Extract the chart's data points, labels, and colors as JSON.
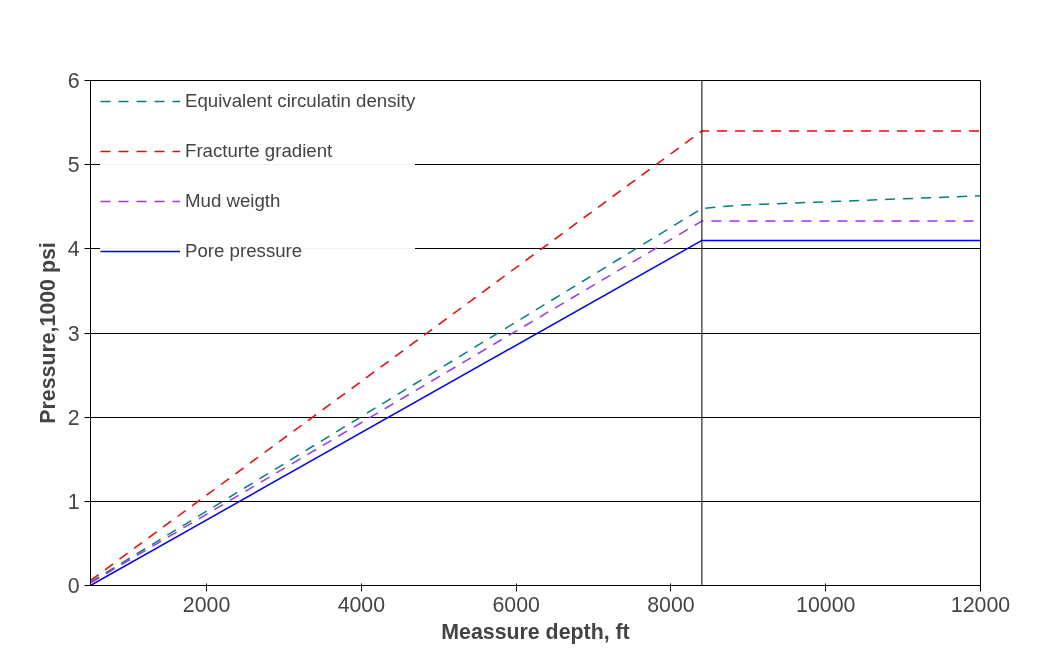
{
  "chart_data": {
    "type": "line",
    "xlabel": "Meassure depth, ft",
    "ylabel": "Pressure,1000 psi",
    "xlim": [
      500,
      12000
    ],
    "xticks": [
      2000,
      4000,
      6000,
      8000,
      10000,
      12000
    ],
    "ylim": [
      0,
      6
    ],
    "yticks": [
      0,
      1,
      2,
      3,
      4,
      5,
      6
    ],
    "grid": "y",
    "legend": "top left",
    "marker": "none",
    "ref_lines": [
      {
        "axis": "x",
        "value": 8400,
        "color": "#000000"
      }
    ],
    "series": [
      {
        "name": "Equivalent circulatin density",
        "color": "#008080",
        "line_style": "dashed",
        "x": [
          500,
          8400,
          8900,
          12000
        ],
        "values": [
          0.04,
          4.48,
          4.52,
          4.63
        ]
      },
      {
        "name": "Fracturte gradient",
        "color": "#ff0000",
        "line_style": "dashed",
        "x": [
          500,
          8400,
          12000
        ],
        "values": [
          0.06,
          5.4,
          5.4
        ]
      },
      {
        "name": "Mud weigth",
        "color": "#9933ff",
        "line_style": "dashed",
        "x": [
          500,
          8400,
          12000
        ],
        "values": [
          0.03,
          4.33,
          4.33
        ]
      },
      {
        "name": "Pore pressure",
        "color": "#0000ff",
        "line_style": "solid",
        "x": [
          500,
          8400,
          12000
        ],
        "values": [
          0.0,
          4.1,
          4.1
        ]
      }
    ]
  }
}
